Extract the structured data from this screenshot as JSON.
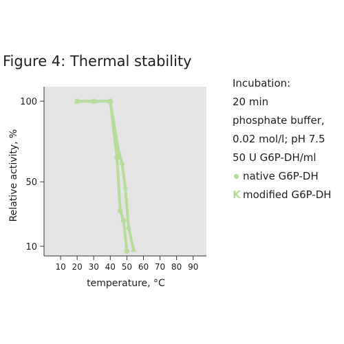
{
  "title": "Figure 4: Thermal stability",
  "notes": {
    "incubation_label": "Incubation:",
    "duration": "20  min",
    "buffer_line1": "phosphate  buffer,",
    "buffer_line2": "0.02 mol/l; pH 7.5",
    "enzyme_amount": "50 U G6P-DH/ml"
  },
  "legend": {
    "native": {
      "marker": "•",
      "label": "native G6P-DH"
    },
    "modified": {
      "marker": "K",
      "label": "modified G6P-DH"
    }
  },
  "colors": {
    "plot_background": "#e4e4e4",
    "series": "#b8dc9c",
    "axis": "#333333"
  },
  "chart_data": {
    "type": "line",
    "xlabel": "temperature, °C",
    "ylabel": "Relative activity, %",
    "x_ticks": [
      10,
      20,
      30,
      40,
      50,
      60,
      70,
      80,
      90
    ],
    "y_ticks": [
      10,
      50,
      100
    ],
    "xlim": [
      0,
      98
    ],
    "ylim": [
      4,
      109
    ],
    "grid": false,
    "legend_position": "right",
    "series": [
      {
        "name": "native G6P-DH",
        "marker": "circle",
        "points": [
          [
            20,
            100
          ],
          [
            30,
            100
          ],
          [
            40,
            100
          ],
          [
            44,
            65
          ],
          [
            46,
            32
          ],
          [
            48,
            26
          ],
          [
            50,
            7
          ]
        ]
      },
      {
        "name": "modified G6P-DH",
        "marker": "triangle",
        "points": [
          [
            20,
            100
          ],
          [
            30,
            100
          ],
          [
            40,
            100
          ],
          [
            45,
            69
          ],
          [
            47,
            62
          ],
          [
            49,
            47
          ],
          [
            51,
            22
          ],
          [
            54,
            8
          ]
        ]
      }
    ]
  }
}
